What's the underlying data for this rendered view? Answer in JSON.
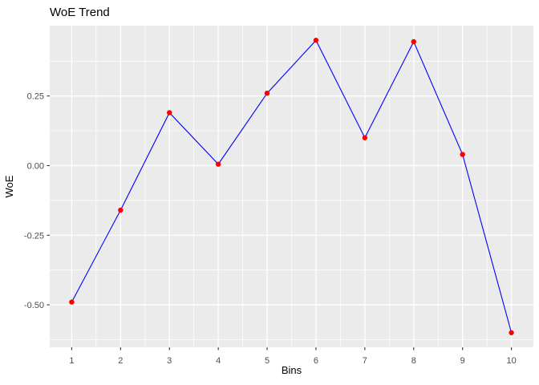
{
  "chart_data": {
    "type": "line",
    "title": "WoE Trend",
    "xlabel": "Bins",
    "ylabel": "WoE",
    "x": [
      1,
      2,
      3,
      4,
      5,
      6,
      7,
      8,
      9,
      10
    ],
    "y": [
      -0.49,
      -0.16,
      0.19,
      0.005,
      0.26,
      0.45,
      0.1,
      0.445,
      0.04,
      -0.6
    ],
    "x_tick_labels": [
      "1",
      "2",
      "3",
      "4",
      "5",
      "6",
      "7",
      "8",
      "9",
      "10"
    ],
    "x_tick_values": [
      1,
      2,
      3,
      4,
      5,
      6,
      7,
      8,
      9,
      10
    ],
    "y_tick_labels": [
      "0.25",
      "0.00",
      "-0.25",
      "-0.50"
    ],
    "y_tick_values": [
      0.25,
      0.0,
      -0.25,
      -0.5
    ],
    "xlim": [
      0.55,
      10.45
    ],
    "ylim": [
      -0.6525,
      0.5025
    ],
    "x_major_step": 1,
    "y_major_step": 0.25,
    "grid": "major-and-minor",
    "legend": "none",
    "colors": {
      "line": "#0000FF",
      "point": "#FF0000",
      "panel_bg": "#EBEBEB",
      "grid": "#FFFFFF",
      "tick_mark": "#333333",
      "tick_text": "#4D4D4D",
      "title_text": "#000000"
    }
  }
}
